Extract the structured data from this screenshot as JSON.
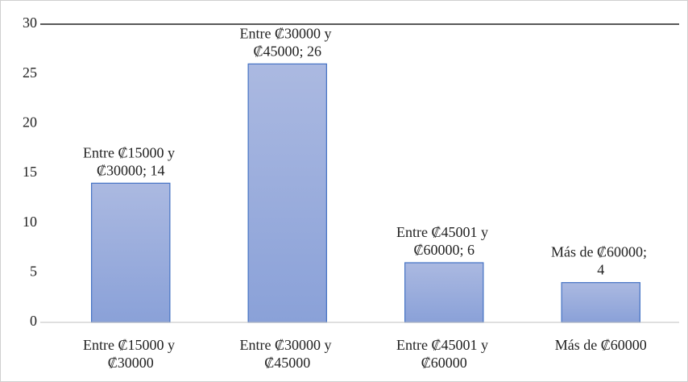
{
  "chart_data": {
    "type": "bar",
    "categories": [
      "Entre ₡15000 y ₡30000",
      "Entre ₡30000 y ₡45000",
      "Entre ₡45001 y ₡60000",
      "Más de ₡60000"
    ],
    "values": [
      14,
      26,
      6,
      4
    ],
    "value_labels": [
      "Entre ₡15000 y ₡30000; 14",
      "Entre ₡30000 y ₡45000; 26",
      "Entre ₡45001 y ₡60000; 6",
      "Más de ₡60000; 4"
    ],
    "color": "#4472c4",
    "ylim": [
      0,
      30
    ],
    "yticks": [
      0,
      5,
      10,
      15,
      20,
      25,
      30
    ],
    "grid": false
  }
}
